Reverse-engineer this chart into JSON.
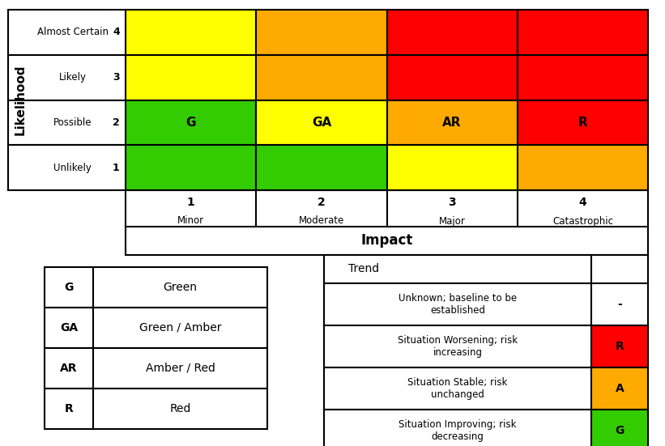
{
  "grid_colors": [
    [
      "#ffff00",
      "#ffaa00",
      "#ff0000",
      "#ff0000"
    ],
    [
      "#ffff00",
      "#ffaa00",
      "#ff0000",
      "#ff0000"
    ],
    [
      "#33cc00",
      "#ffff00",
      "#ffaa00",
      "#ff0000"
    ],
    [
      "#33cc00",
      "#33cc00",
      "#ffff00",
      "#ffaa00"
    ]
  ],
  "cell_labels": [
    [
      "",
      "",
      "",
      ""
    ],
    [
      "",
      "",
      "",
      ""
    ],
    [
      "G",
      "GA",
      "AR",
      "R"
    ],
    [
      "",
      "",
      "",
      ""
    ]
  ],
  "likelihood_labels": [
    "Almost Certain",
    "Likely",
    "Possible",
    "Unlikely"
  ],
  "likelihood_numbers": [
    "4",
    "3",
    "2",
    "1"
  ],
  "impact_labels": [
    "Minor",
    "Moderate",
    "Major",
    "Catastrophic"
  ],
  "impact_numbers": [
    "1",
    "2",
    "3",
    "4"
  ],
  "legend_abbrev": [
    "G",
    "GA",
    "AR",
    "R"
  ],
  "legend_full": [
    "Green",
    "Green / Amber",
    "Amber / Red",
    "Red"
  ],
  "trend_labels": [
    "Unknown; baseline to be\nestablished",
    "Situation Worsening; risk\nincreasing",
    "Situation Stable; risk\nunchanged",
    "Situation Improving; risk\ndecreasing"
  ],
  "trend_symbols": [
    "-",
    "R",
    "A",
    "G"
  ],
  "trend_symbol_colors": [
    "#ffffff",
    "#ff0000",
    "#ffaa00",
    "#33cc00"
  ],
  "green": "#33cc00",
  "yellow": "#ffff00",
  "orange": "#ffaa00",
  "red": "#ff0000",
  "white": "#ffffff",
  "black": "#000000",
  "lw": 1.5
}
